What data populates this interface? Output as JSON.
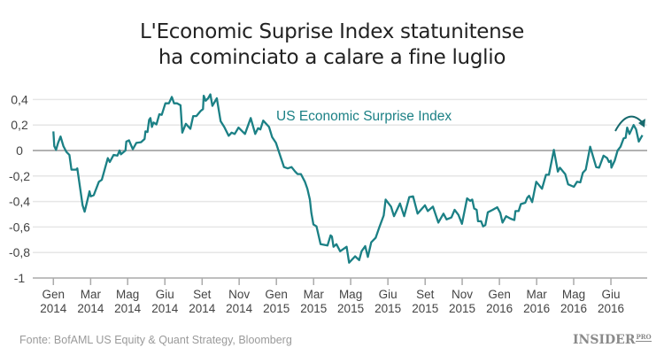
{
  "chart_data": {
    "type": "line",
    "title": [
      "L'Economic Suprise Index statunitense",
      "ha cominciato a calare a fine luglio"
    ],
    "xlabel": "",
    "ylabel": "",
    "ylim": [
      -1,
      0.4
    ],
    "yticks": [
      0.4,
      0.2,
      0,
      -0.2,
      -0.4,
      -0.6,
      -0.8,
      -1
    ],
    "ytick_labels": [
      "0,4",
      "0,2",
      "0",
      "-0,2",
      "-0,4",
      "-0,6",
      "-0,8",
      "-1"
    ],
    "xticks": [
      {
        "x": 2014.0,
        "label": [
          "Gen",
          "2014"
        ]
      },
      {
        "x": 2014.167,
        "label": [
          "Mar",
          "2014"
        ]
      },
      {
        "x": 2014.333,
        "label": [
          "Mag",
          "2014"
        ]
      },
      {
        "x": 2014.5,
        "label": [
          "Giu",
          "2014"
        ]
      },
      {
        "x": 2014.667,
        "label": [
          "Set",
          "2014"
        ]
      },
      {
        "x": 2014.833,
        "label": [
          "Nov",
          "2014"
        ]
      },
      {
        "x": 2015.0,
        "label": [
          "Gen",
          "2015"
        ]
      },
      {
        "x": 2015.167,
        "label": [
          "Mar",
          "2015"
        ]
      },
      {
        "x": 2015.333,
        "label": [
          "Mag",
          "2015"
        ]
      },
      {
        "x": 2015.5,
        "label": [
          "Giu",
          "2015"
        ]
      },
      {
        "x": 2015.667,
        "label": [
          "Set",
          "2015"
        ]
      },
      {
        "x": 2015.833,
        "label": [
          "Nov",
          "2015"
        ]
      },
      {
        "x": 2016.0,
        "label": [
          "Gen",
          "2016"
        ]
      },
      {
        "x": 2016.167,
        "label": [
          "Mar",
          "2016"
        ]
      },
      {
        "x": 2016.333,
        "label": [
          "Mag",
          "2016"
        ]
      },
      {
        "x": 2016.5,
        "label": [
          "Giu",
          "2016"
        ]
      }
    ],
    "grid": true,
    "series": [
      {
        "name": "US Economic Surprise Index",
        "color": "#1b8085",
        "points": [
          [
            2014.0,
            0.15
          ],
          [
            2014.004,
            0.035
          ],
          [
            2014.012,
            0.005
          ],
          [
            2014.021,
            0.06
          ],
          [
            2014.032,
            0.11
          ],
          [
            2014.045,
            0.035
          ],
          [
            2014.058,
            -0.01
          ],
          [
            2014.072,
            -0.035
          ],
          [
            2014.081,
            -0.15
          ],
          [
            2014.102,
            -0.15
          ],
          [
            2014.107,
            -0.14
          ],
          [
            2014.131,
            -0.43
          ],
          [
            2014.14,
            -0.48
          ],
          [
            2014.154,
            -0.38
          ],
          [
            2014.162,
            -0.32
          ],
          [
            2014.167,
            -0.36
          ],
          [
            2014.181,
            -0.35
          ],
          [
            2014.204,
            -0.245
          ],
          [
            2014.217,
            -0.23
          ],
          [
            2014.244,
            -0.06
          ],
          [
            2014.253,
            -0.09
          ],
          [
            2014.27,
            -0.035
          ],
          [
            2014.287,
            -0.04
          ],
          [
            2014.297,
            0.0
          ],
          [
            2014.303,
            -0.03
          ],
          [
            2014.323,
            0.0
          ],
          [
            2014.327,
            0.07
          ],
          [
            2014.339,
            0.08
          ],
          [
            2014.356,
            0.01
          ],
          [
            2014.372,
            0.06
          ],
          [
            2014.393,
            0.065
          ],
          [
            2014.409,
            0.09
          ],
          [
            2014.413,
            0.15
          ],
          [
            2014.422,
            0.145
          ],
          [
            2014.429,
            0.24
          ],
          [
            2014.435,
            0.255
          ],
          [
            2014.442,
            0.185
          ],
          [
            2014.449,
            0.22
          ],
          [
            2014.462,
            0.205
          ],
          [
            2014.475,
            0.285
          ],
          [
            2014.486,
            0.28
          ],
          [
            2014.502,
            0.37
          ],
          [
            2014.518,
            0.37
          ],
          [
            2014.531,
            0.42
          ],
          [
            2014.541,
            0.37
          ],
          [
            2014.555,
            0.37
          ],
          [
            2014.57,
            0.355
          ],
          [
            2014.578,
            0.14
          ],
          [
            2014.594,
            0.21
          ],
          [
            2014.614,
            0.17
          ],
          [
            2014.627,
            0.27
          ],
          [
            2014.641,
            0.27
          ],
          [
            2014.66,
            0.31
          ],
          [
            2014.671,
            0.325
          ],
          [
            2014.674,
            0.43
          ],
          [
            2014.683,
            0.39
          ],
          [
            2014.694,
            0.41
          ],
          [
            2014.704,
            0.44
          ],
          [
            2014.713,
            0.35
          ],
          [
            2014.733,
            0.41
          ],
          [
            2014.75,
            0.23
          ],
          [
            2014.766,
            0.185
          ],
          [
            2014.786,
            0.115
          ],
          [
            2014.799,
            0.14
          ],
          [
            2014.813,
            0.13
          ],
          [
            2014.83,
            0.18
          ],
          [
            2014.859,
            0.13
          ],
          [
            2014.885,
            0.255
          ],
          [
            2014.905,
            0.13
          ],
          [
            2014.918,
            0.175
          ],
          [
            2014.928,
            0.165
          ],
          [
            2014.941,
            0.235
          ],
          [
            2014.967,
            0.185
          ],
          [
            2014.981,
            0.105
          ],
          [
            2014.998,
            0.06
          ],
          [
            2015.011,
            -0.01
          ],
          [
            2015.034,
            -0.13
          ],
          [
            2015.051,
            -0.14
          ],
          [
            2015.068,
            -0.13
          ],
          [
            2015.084,
            -0.165
          ],
          [
            2015.095,
            -0.185
          ],
          [
            2015.11,
            -0.185
          ],
          [
            2015.128,
            -0.245
          ],
          [
            2015.139,
            -0.3
          ],
          [
            2015.15,
            -0.385
          ],
          [
            2015.157,
            -0.49
          ],
          [
            2015.166,
            -0.58
          ],
          [
            2015.18,
            -0.595
          ],
          [
            2015.198,
            -0.735
          ],
          [
            2015.229,
            -0.745
          ],
          [
            2015.243,
            -0.665
          ],
          [
            2015.249,
            -0.675
          ],
          [
            2015.256,
            -0.755
          ],
          [
            2015.269,
            -0.735
          ],
          [
            2015.286,
            -0.79
          ],
          [
            2015.315,
            -0.755
          ],
          [
            2015.326,
            -0.88
          ],
          [
            2015.353,
            -0.83
          ],
          [
            2015.371,
            -0.86
          ],
          [
            2015.382,
            -0.79
          ],
          [
            2015.398,
            -0.75
          ],
          [
            2015.41,
            -0.835
          ],
          [
            2015.425,
            -0.72
          ],
          [
            2015.445,
            -0.685
          ],
          [
            2015.461,
            -0.605
          ],
          [
            2015.481,
            -0.51
          ],
          [
            2015.49,
            -0.385
          ],
          [
            2015.514,
            -0.44
          ],
          [
            2015.527,
            -0.515
          ],
          [
            2015.554,
            -0.415
          ],
          [
            2015.573,
            -0.515
          ],
          [
            2015.596,
            -0.365
          ],
          [
            2015.613,
            -0.36
          ],
          [
            2015.633,
            -0.495
          ],
          [
            2015.666,
            -0.43
          ],
          [
            2015.679,
            -0.475
          ],
          [
            2015.702,
            -0.44
          ],
          [
            2015.726,
            -0.565
          ],
          [
            2015.749,
            -0.495
          ],
          [
            2015.763,
            -0.54
          ],
          [
            2015.785,
            -0.525
          ],
          [
            2015.799,
            -0.465
          ],
          [
            2015.816,
            -0.505
          ],
          [
            2015.832,
            -0.575
          ],
          [
            2015.855,
            -0.375
          ],
          [
            2015.869,
            -0.395
          ],
          [
            2015.878,
            -0.385
          ],
          [
            2015.887,
            -0.455
          ],
          [
            2015.898,
            -0.465
          ],
          [
            2015.904,
            -0.555
          ],
          [
            2015.918,
            -0.555
          ],
          [
            2015.927,
            -0.595
          ],
          [
            2015.937,
            -0.585
          ],
          [
            2015.948,
            -0.485
          ],
          [
            2015.97,
            -0.465
          ],
          [
            2015.99,
            -0.445
          ],
          [
            2016.004,
            -0.49
          ],
          [
            2016.014,
            -0.565
          ],
          [
            2016.03,
            -0.515
          ],
          [
            2016.05,
            -0.535
          ],
          [
            2016.067,
            -0.545
          ],
          [
            2016.072,
            -0.475
          ],
          [
            2016.086,
            -0.475
          ],
          [
            2016.096,
            -0.42
          ],
          [
            2016.116,
            -0.41
          ],
          [
            2016.125,
            -0.37
          ],
          [
            2016.133,
            -0.355
          ],
          [
            2016.147,
            -0.405
          ],
          [
            2016.165,
            -0.245
          ],
          [
            2016.191,
            -0.3
          ],
          [
            2016.209,
            -0.19
          ],
          [
            2016.222,
            -0.19
          ],
          [
            2016.244,
            0.005
          ],
          [
            2016.262,
            -0.165
          ],
          [
            2016.271,
            -0.135
          ],
          [
            2016.295,
            -0.185
          ],
          [
            2016.308,
            -0.265
          ],
          [
            2016.334,
            -0.285
          ],
          [
            2016.348,
            -0.245
          ],
          [
            2016.363,
            -0.25
          ],
          [
            2016.374,
            -0.175
          ],
          [
            2016.387,
            -0.15
          ],
          [
            2016.407,
            0.03
          ],
          [
            2016.434,
            -0.13
          ],
          [
            2016.447,
            -0.135
          ],
          [
            2016.467,
            -0.04
          ],
          [
            2016.483,
            -0.06
          ],
          [
            2016.491,
            -0.09
          ],
          [
            2016.5,
            -0.08
          ],
          [
            2016.502,
            -0.135
          ],
          [
            2016.517,
            -0.08
          ],
          [
            2016.53,
            0.0
          ],
          [
            2016.543,
            0.03
          ],
          [
            2016.557,
            0.095
          ],
          [
            2016.566,
            0.1
          ],
          [
            2016.573,
            0.18
          ],
          [
            2016.583,
            0.13
          ],
          [
            2016.602,
            0.2
          ],
          [
            2016.613,
            0.165
          ],
          [
            2016.625,
            0.07
          ],
          [
            2016.641,
            0.12
          ]
        ]
      }
    ],
    "annotations": [
      {
        "type": "curved-arrow",
        "text": ""
      }
    ]
  },
  "source": "Fonte: BofAML US Equity & Quant Strategy, Bloomberg",
  "logo": {
    "main": "INSIDER",
    "sub": "PRO"
  }
}
